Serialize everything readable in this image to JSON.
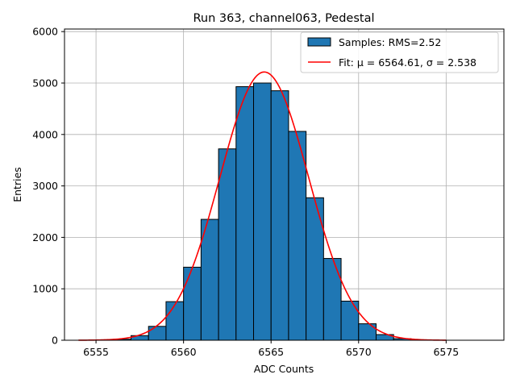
{
  "chart_data": {
    "type": "bar",
    "title": "Run 363, channel063, Pedestal",
    "xlabel": "ADC Counts",
    "ylabel": "Entries",
    "xlim": [
      6553.2,
      6578.3
    ],
    "ylim": [
      0,
      6050
    ],
    "x_ticks": [
      6555,
      6560,
      6565,
      6570,
      6575
    ],
    "y_ticks": [
      0,
      1000,
      2000,
      3000,
      4000,
      5000,
      6000
    ],
    "grid": true,
    "legend_position": "top-right",
    "bins": {
      "edges": [
        6556,
        6557,
        6558,
        6559,
        6560,
        6561,
        6562,
        6563,
        6564,
        6565,
        6566,
        6567,
        6568,
        6569,
        6570,
        6571,
        6572,
        6573
      ],
      "counts": [
        20,
        90,
        270,
        750,
        1420,
        2350,
        3720,
        4930,
        5000,
        4850,
        4060,
        2770,
        1590,
        760,
        320,
        110,
        30
      ]
    },
    "fit": {
      "mu": 6564.61,
      "sigma": 2.538,
      "amplitude": 5215,
      "x_range": [
        6554,
        6575
      ]
    },
    "series": [
      {
        "name": "Samples: RMS=2.52",
        "kind": "histogram",
        "color": "#1f77b4"
      },
      {
        "name": "Fit: μ = 6564.61, σ = 2.538",
        "kind": "line",
        "color": "#ff0000"
      }
    ]
  }
}
